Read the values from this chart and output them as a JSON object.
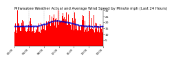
{
  "title": "Milwaukee Weather Actual and Average Wind Speed by Minute mph (Last 24 Hours)",
  "title_fontsize": 3.8,
  "n_points": 1440,
  "background_color": "#ffffff",
  "bar_color": "#ff0000",
  "line_color": "#0000cd",
  "line_style": "--",
  "line_width": 0.6,
  "line_marker": ".",
  "line_marker_size": 0.8,
  "ylim": [
    0,
    30
  ],
  "yticks": [
    5,
    10,
    15,
    20,
    25,
    30
  ],
  "ytick_fontsize": 3.2,
  "xtick_fontsize": 2.8,
  "grid_color": "#bbbbbb",
  "grid_style": "--",
  "grid_linewidth": 0.35,
  "n_grid_lines": 6,
  "seed": 42
}
